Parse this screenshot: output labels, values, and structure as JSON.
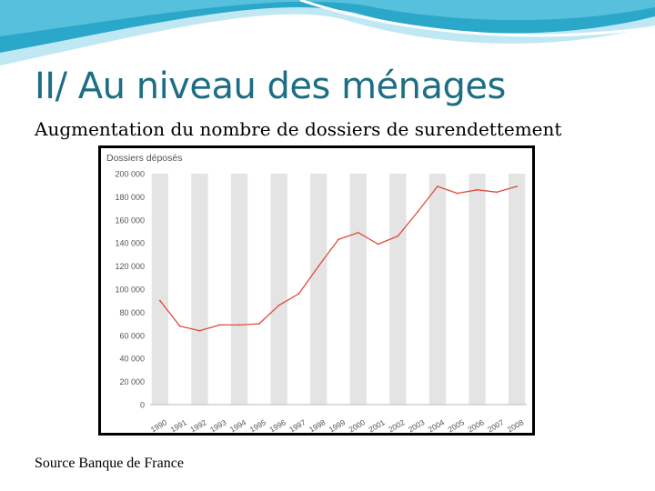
{
  "slide": {
    "title": "II/ Au niveau des ménages",
    "subtitle": "Augmentation du nombre de dossiers de surendettement",
    "source": "Source Banque de France"
  },
  "colors": {
    "title": "#1d6e84",
    "wave_dark": "#2aa7c9",
    "wave_light": "#bfe8f4",
    "stripe": "#e4e4e4",
    "line": "#e04b3c",
    "axis_text": "#555555"
  },
  "chart_data": {
    "type": "line",
    "title": "Dossiers déposés",
    "xlabel": "",
    "ylabel": "",
    "grid": "alternating vertical bands",
    "legend": "none",
    "categories": [
      "1990",
      "1991",
      "1992",
      "1993",
      "1994",
      "1995",
      "1996",
      "1997",
      "1998",
      "1999",
      "2000",
      "2001",
      "2002",
      "2003",
      "2004",
      "2005",
      "2006",
      "2007",
      "2008"
    ],
    "ylim": [
      0,
      200000
    ],
    "yticks": [
      "0",
      "20 000",
      "40 000",
      "60 000",
      "80 000",
      "100 000",
      "120 000",
      "140 000",
      "160 000",
      "180 000",
      "200 000"
    ],
    "series": [
      {
        "values": [
          90000,
          68000,
          64000,
          69000,
          69000,
          70000,
          86000,
          96000,
          120000,
          143000,
          149000,
          139000,
          146000,
          167000,
          189000,
          183000,
          186000,
          184000,
          189000
        ]
      }
    ]
  }
}
